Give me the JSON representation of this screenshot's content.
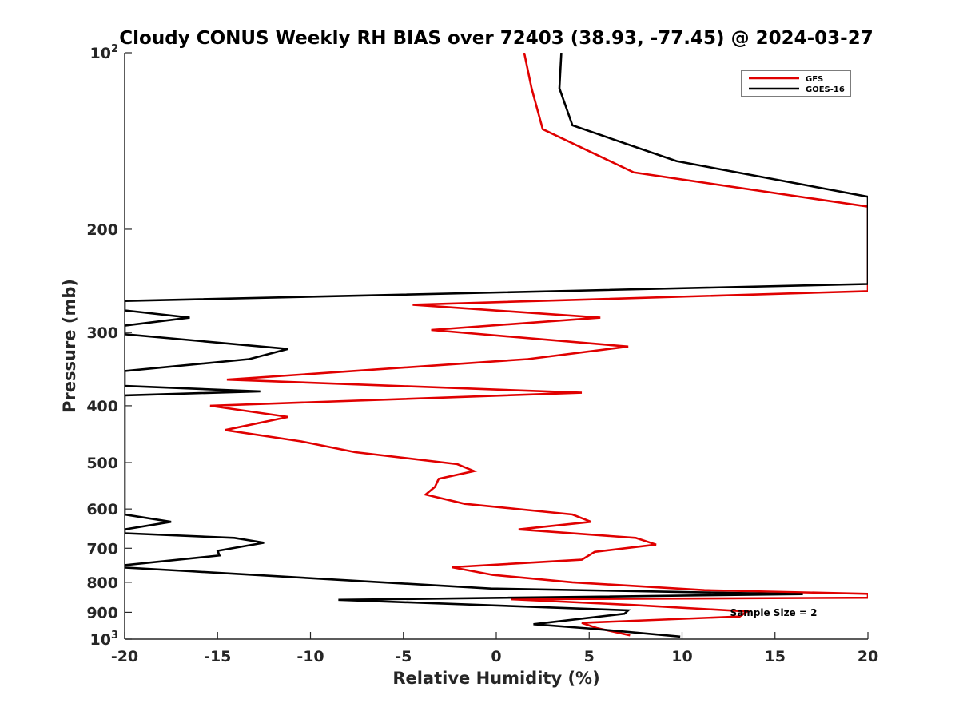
{
  "chart_data": {
    "type": "line",
    "title": "Cloudy CONUS Weekly RH BIAS over 72403 (38.93, -77.45) @ 2024-03-27",
    "xlabel": "Relative Humidity (%)",
    "ylabel": "Pressure (mb)",
    "xlim": [
      -20,
      20
    ],
    "ylim": [
      100,
      1000
    ],
    "y_scale": "log",
    "y_reversed": true,
    "grid": false,
    "legend_position": "top-right",
    "x_ticks": [
      -20,
      -15,
      -10,
      -5,
      0,
      5,
      10,
      15,
      20
    ],
    "x_tick_labels": [
      "-20",
      "-15",
      "-10",
      "-5",
      "0",
      "5",
      "10",
      "15",
      "20"
    ],
    "y_ticks": [
      100,
      200,
      300,
      400,
      500,
      600,
      700,
      800,
      900,
      1000
    ],
    "y_tick_labels": [
      {
        "base": "10",
        "exp": "2"
      },
      {
        "base": "200",
        "exp": ""
      },
      {
        "base": "300",
        "exp": ""
      },
      {
        "base": "400",
        "exp": ""
      },
      {
        "base": "500",
        "exp": ""
      },
      {
        "base": "600",
        "exp": ""
      },
      {
        "base": "700",
        "exp": ""
      },
      {
        "base": "800",
        "exp": ""
      },
      {
        "base": "900",
        "exp": ""
      },
      {
        "base": "10",
        "exp": "3"
      }
    ],
    "annotation": "Sample Size = 2",
    "series": [
      {
        "name": "GFS",
        "color": "#e00000",
        "points": [
          [
            1.5,
            100
          ],
          [
            1.9,
            115
          ],
          [
            2.5,
            135
          ],
          [
            7.4,
            160
          ],
          [
            20,
            183
          ],
          [
            20,
            255
          ],
          [
            -4.5,
            269
          ],
          [
            5.6,
            283
          ],
          [
            -3.5,
            297
          ],
          [
            7.1,
            317
          ],
          [
            1.7,
            333
          ],
          [
            -14.5,
            361
          ],
          [
            4.6,
            380
          ],
          [
            -15.4,
            400
          ],
          [
            -11.2,
            418
          ],
          [
            -14.6,
            440
          ],
          [
            -10.5,
            460
          ],
          [
            -7.6,
            480
          ],
          [
            -2.1,
            503
          ],
          [
            -1.2,
            517
          ],
          [
            -3.1,
            533
          ],
          [
            -3.3,
            550
          ],
          [
            -3.8,
            567
          ],
          [
            -1.7,
            588
          ],
          [
            4.1,
            613
          ],
          [
            5.1,
            631
          ],
          [
            1.2,
            650
          ],
          [
            7.5,
            672
          ],
          [
            8.6,
            690
          ],
          [
            5.3,
            710
          ],
          [
            4.6,
            732
          ],
          [
            -2.4,
            754
          ],
          [
            -0.2,
            777
          ],
          [
            4.1,
            800
          ],
          [
            11.2,
            825
          ],
          [
            20,
            837
          ],
          [
            20,
            850
          ],
          [
            0.8,
            855
          ],
          [
            7.5,
            875
          ],
          [
            13.5,
            897
          ],
          [
            13.1,
            915
          ],
          [
            4.6,
            938
          ],
          [
            5.4,
            957
          ],
          [
            7.2,
            985
          ]
        ]
      },
      {
        "name": "GOES-16",
        "color": "#000000",
        "points": [
          [
            3.5,
            100
          ],
          [
            3.4,
            115
          ],
          [
            4.1,
            133
          ],
          [
            9.7,
            153
          ],
          [
            20,
            176
          ],
          [
            20,
            248
          ],
          [
            -20,
            265
          ],
          [
            -20,
            275
          ],
          [
            -16.5,
            283
          ],
          [
            -20,
            292
          ],
          [
            -20,
            302
          ],
          [
            -11.2,
            320
          ],
          [
            -13.3,
            333
          ],
          [
            -20,
            349
          ],
          [
            -20,
            370
          ],
          [
            -12.7,
            378
          ],
          [
            -20,
            384
          ],
          [
            -20,
            613
          ],
          [
            -17.5,
            631
          ],
          [
            -20,
            650
          ],
          [
            -20,
            660
          ],
          [
            -14.1,
            672
          ],
          [
            -12.5,
            685
          ],
          [
            -15.0,
            707
          ],
          [
            -14.9,
            720
          ],
          [
            -20,
            748
          ],
          [
            -20,
            755
          ],
          [
            -16.5,
            766
          ],
          [
            -0.3,
            820
          ],
          [
            16.5,
            838
          ],
          [
            -8.5,
            857
          ],
          [
            7.1,
            893
          ],
          [
            6.9,
            905
          ],
          [
            2.0,
            943
          ],
          [
            5.2,
            960
          ],
          [
            9.9,
            990
          ]
        ]
      }
    ]
  }
}
